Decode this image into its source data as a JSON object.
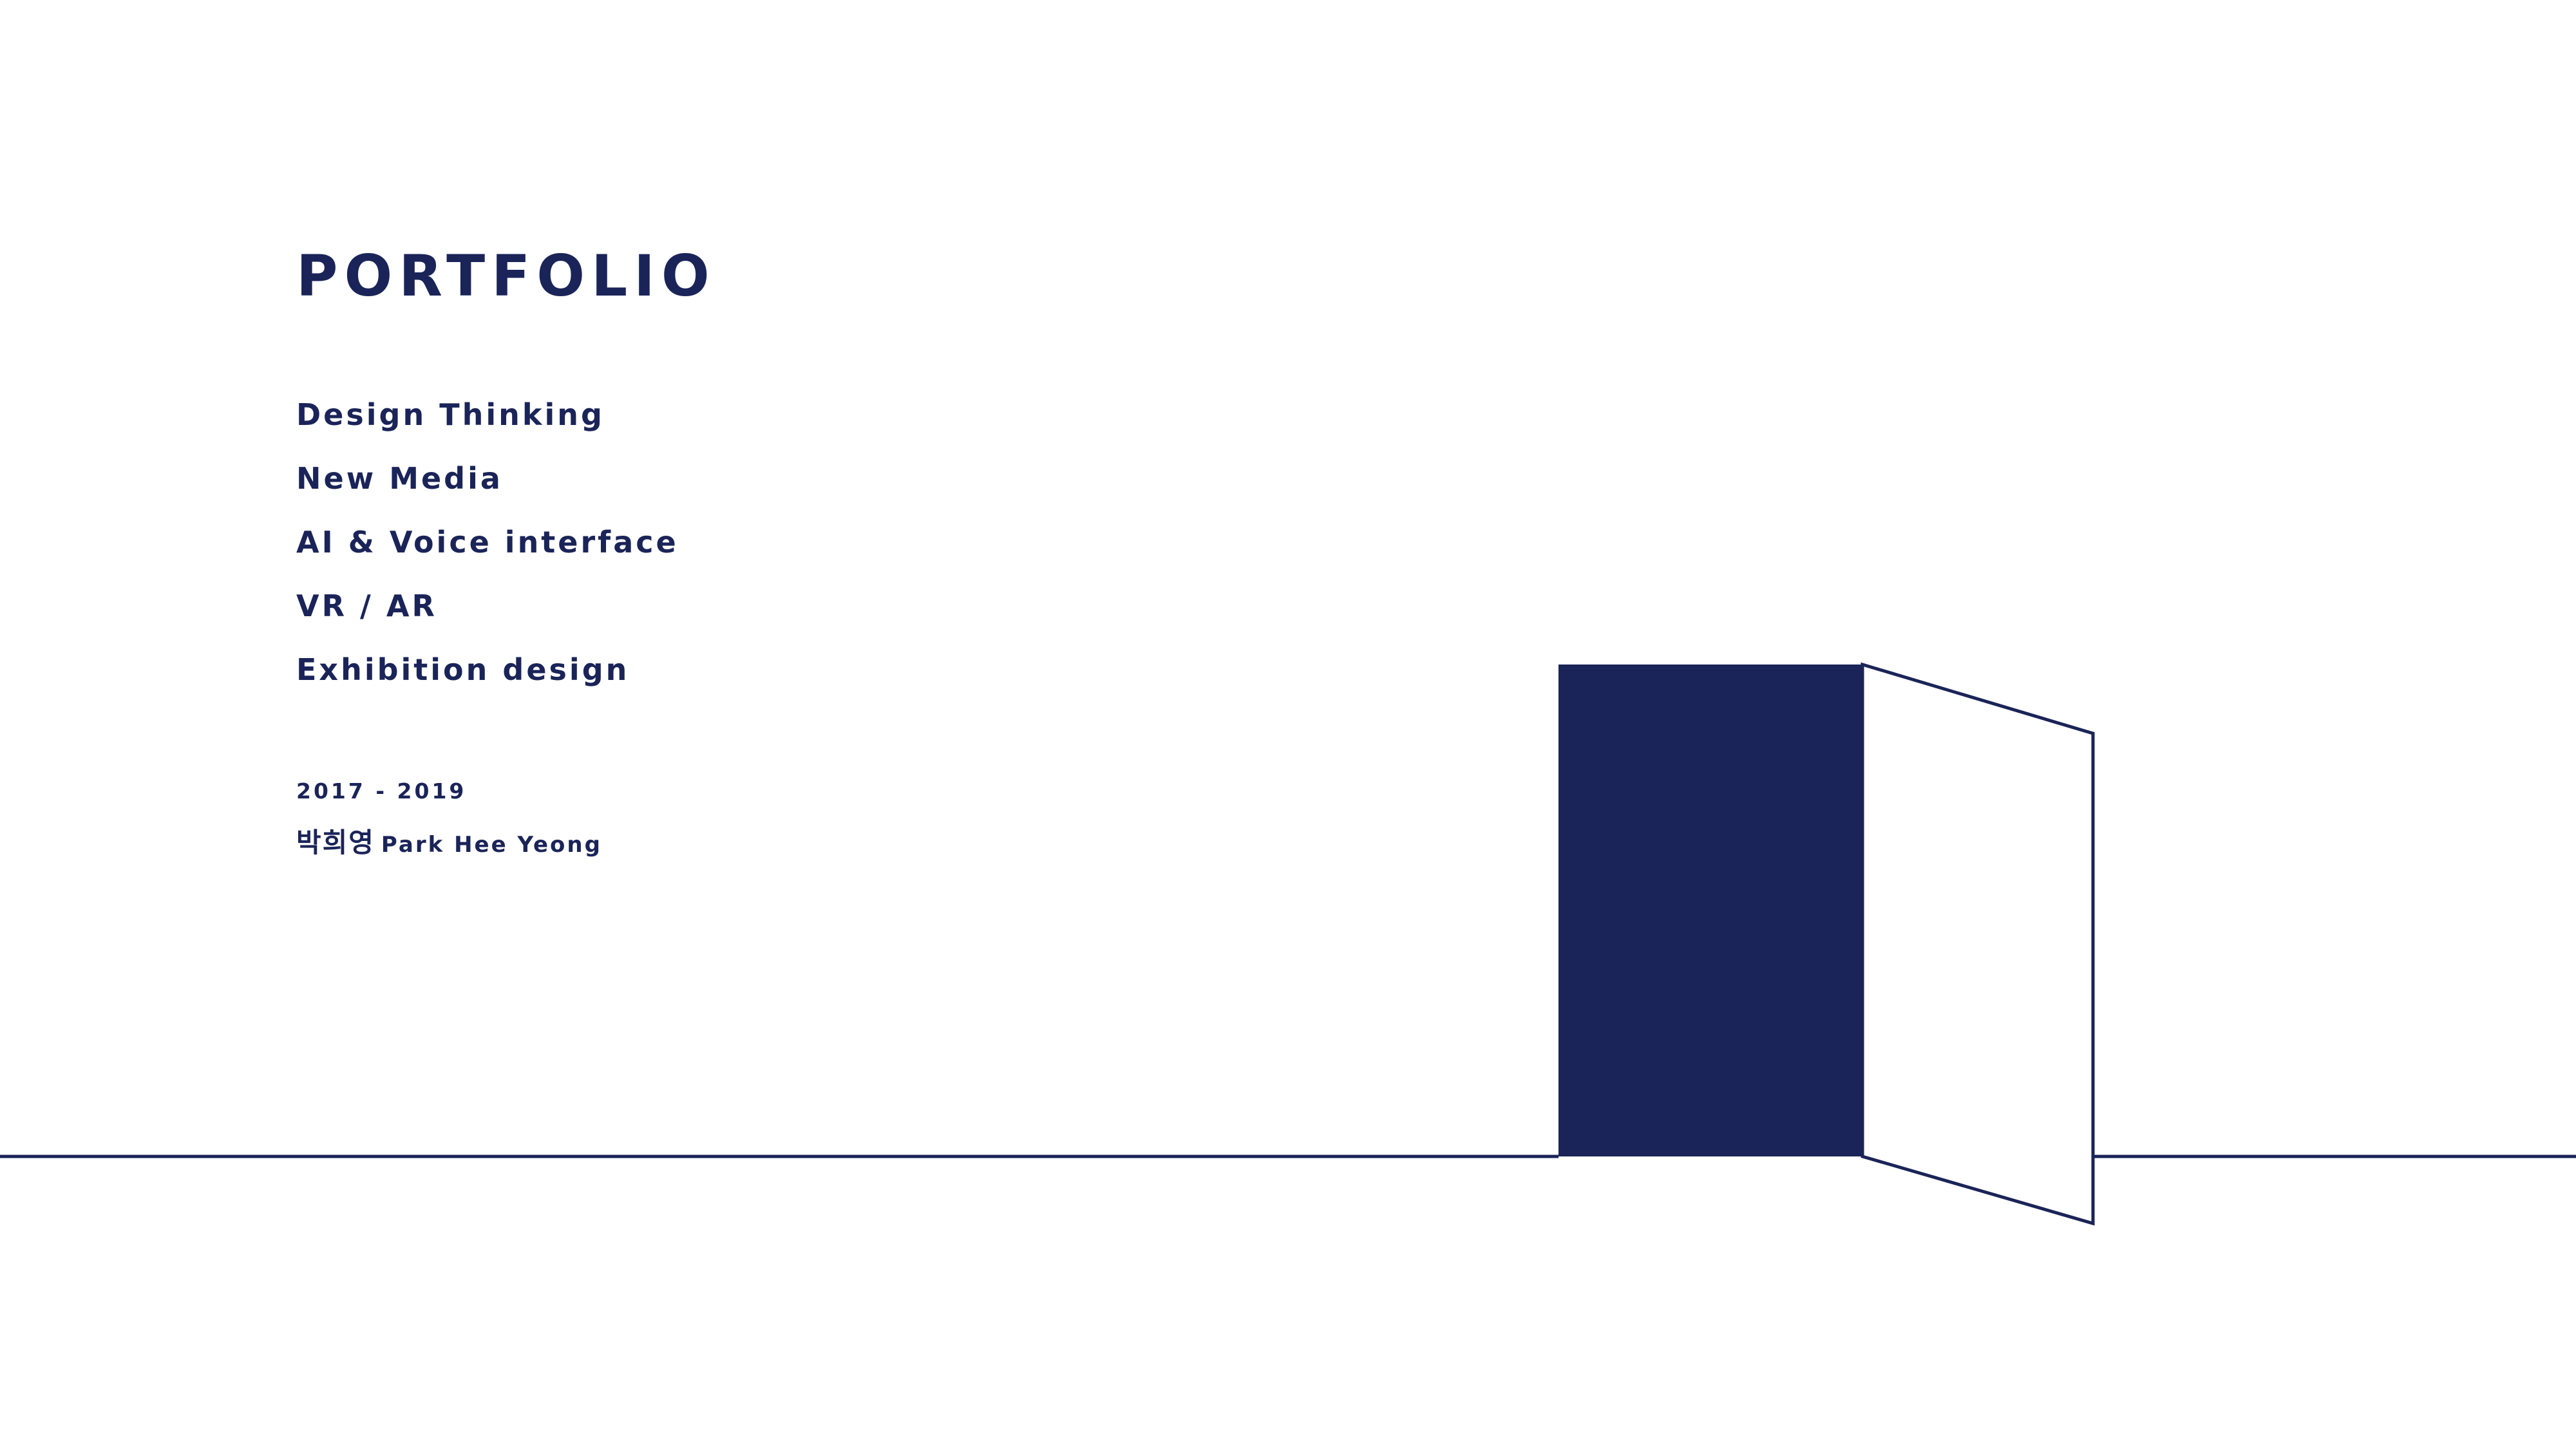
{
  "slide": {
    "title": "PORTFOLIO",
    "topics": [
      "Design Thinking",
      "New Media",
      "AI & Voice interface",
      "VR / AR",
      "Exhibition design"
    ],
    "years": "2017 - 2019",
    "author_korean": "박희영",
    "author_english": "Park Hee Yeong"
  },
  "illustration": {
    "name": "open-door",
    "color": "#1a2458"
  },
  "colors": {
    "text": "#1a2458",
    "background": "#ffffff"
  }
}
